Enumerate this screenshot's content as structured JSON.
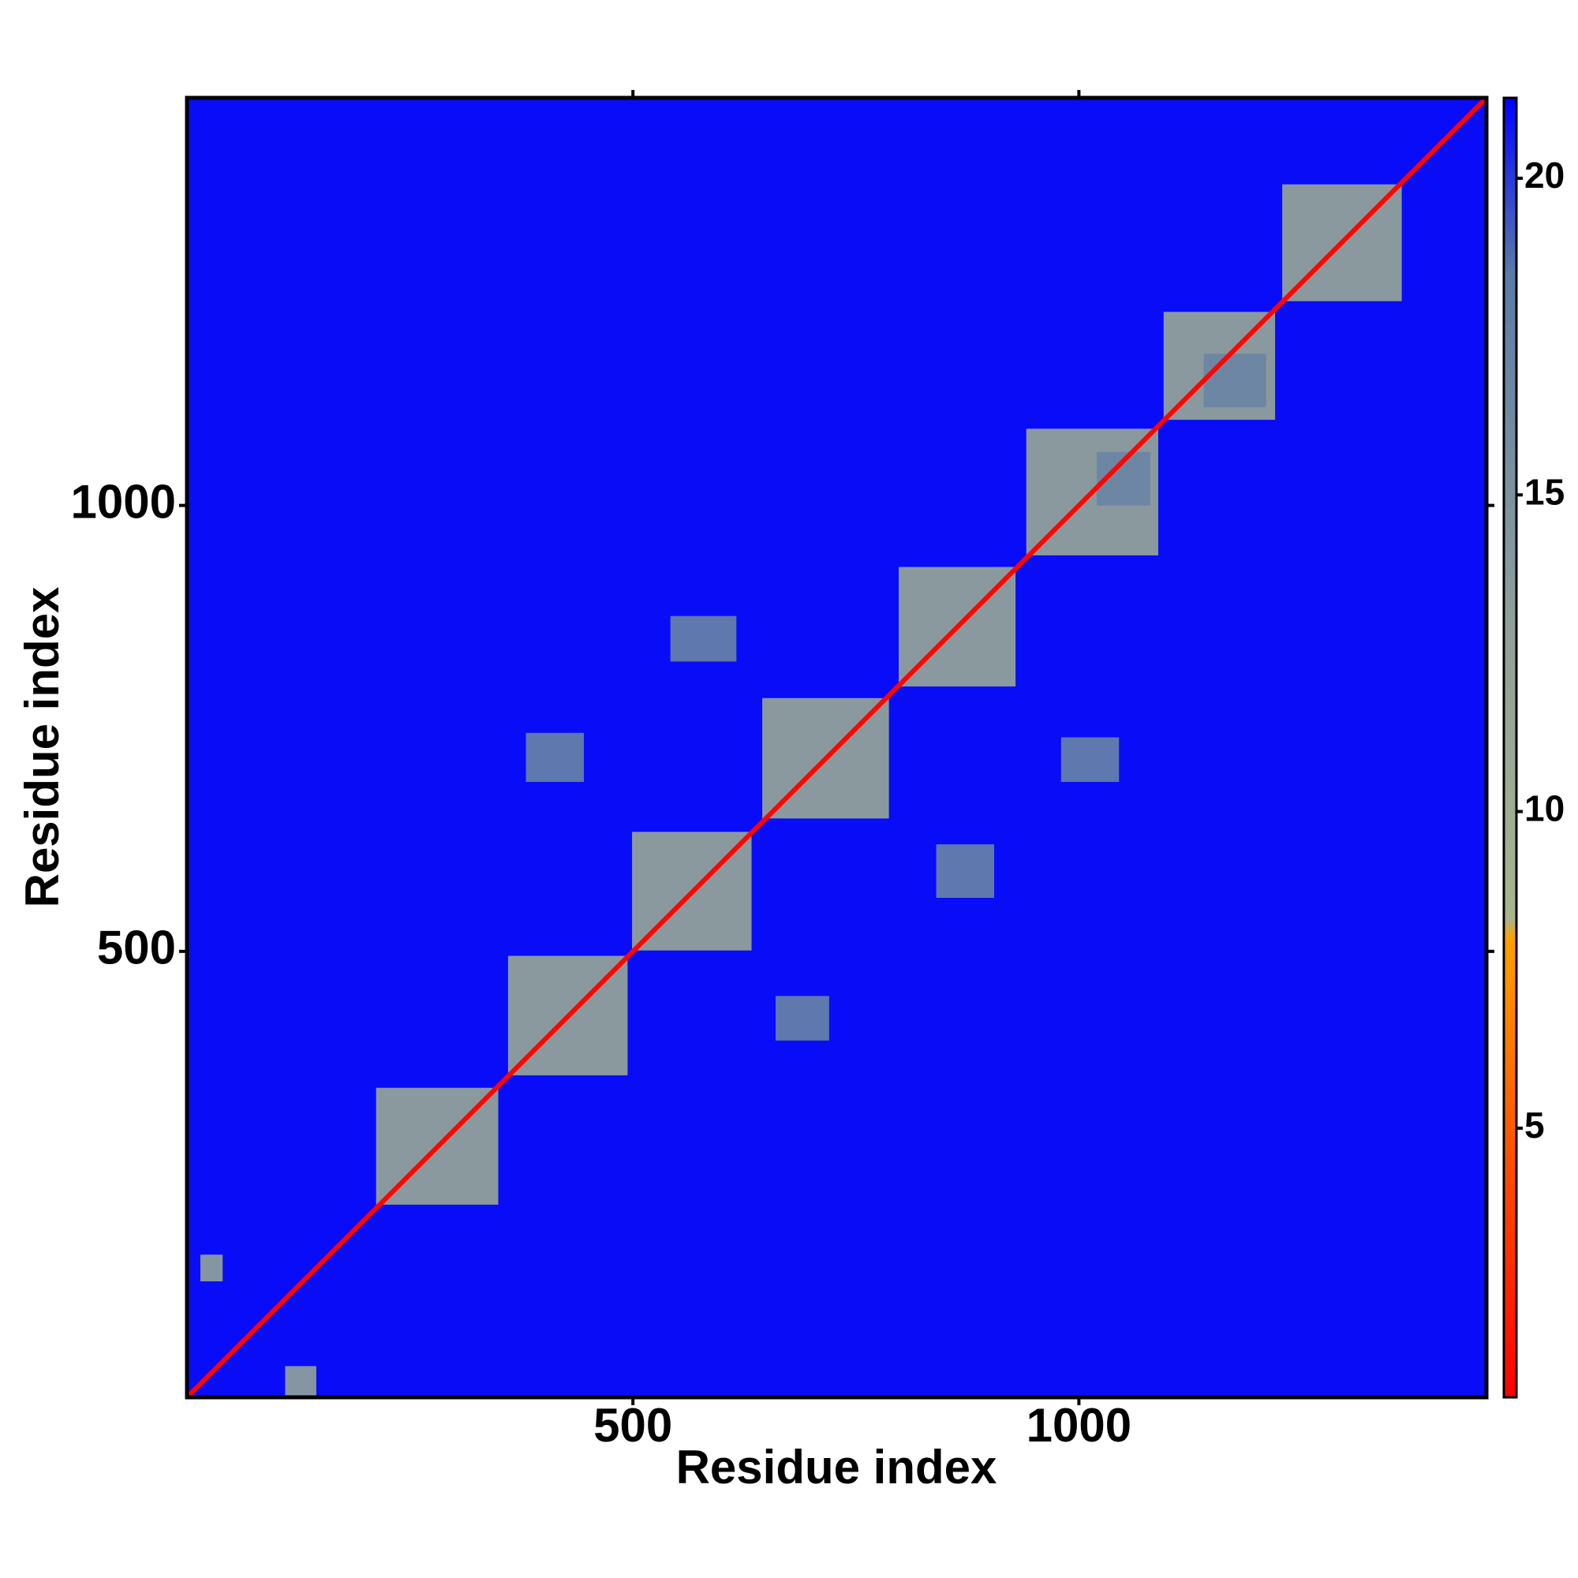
{
  "chart_data": {
    "type": "heatmap",
    "xlabel": "Residue index",
    "ylabel": "Residue index",
    "xlim": [
      0,
      1457
    ],
    "ylim": [
      0,
      1457
    ],
    "xticks": [
      500,
      1000
    ],
    "yticks": [
      500,
      1000
    ],
    "background_value": 21,
    "diagonal_value": 1,
    "regions": [
      {
        "x": [
          212,
          349
        ],
        "y": [
          216,
          347
        ],
        "value": 11
      },
      {
        "x": [
          360,
          494
        ],
        "y": [
          361,
          495
        ],
        "value": 11
      },
      {
        "x": [
          499,
          633
        ],
        "y": [
          501,
          634
        ],
        "value": 11
      },
      {
        "x": [
          645,
          787
        ],
        "y": [
          649,
          784
        ],
        "value": 11
      },
      {
        "x": [
          798,
          929
        ],
        "y": [
          797,
          931
        ],
        "value": 11
      },
      {
        "x": [
          941,
          1089
        ],
        "y": [
          944,
          1086
        ],
        "value": 11
      },
      {
        "x": [
          1095,
          1220
        ],
        "y": [
          1096,
          1217
        ],
        "value": 11
      },
      {
        "x": [
          1228,
          1362
        ],
        "y": [
          1229,
          1360
        ],
        "value": 11
      },
      {
        "x": [
          542,
          616
        ],
        "y": [
          825,
          876
        ],
        "value": 17
      },
      {
        "x": [
          380,
          445
        ],
        "y": [
          690,
          745
        ],
        "value": 17
      },
      {
        "x": [
          980,
          1045
        ],
        "y": [
          690,
          740
        ],
        "value": 17
      },
      {
        "x": [
          840,
          905
        ],
        "y": [
          560,
          620
        ],
        "value": 17
      },
      {
        "x": [
          660,
          720
        ],
        "y": [
          400,
          450
        ],
        "value": 17
      },
      {
        "x": [
          1020,
          1080
        ],
        "y": [
          1000,
          1060
        ],
        "value": 17
      },
      {
        "x": [
          1140,
          1210
        ],
        "y": [
          1110,
          1170
        ],
        "value": 17
      },
      {
        "x": [
          110,
          145
        ],
        "y": [
          0,
          35
        ],
        "value": 12
      },
      {
        "x": [
          15,
          40
        ],
        "y": [
          130,
          160
        ],
        "value": 12
      }
    ],
    "colorbar": {
      "zlim": [
        0.75,
        21.27
      ],
      "ticks": [
        5,
        10,
        15,
        20
      ],
      "color_stops": [
        {
          "value": 0.75,
          "color": "#ff0000"
        },
        {
          "value": 5,
          "color": "#ff5a00"
        },
        {
          "value": 8,
          "color": "#ffa000"
        },
        {
          "value": 8.3,
          "color": "#a8b48c"
        },
        {
          "value": 13,
          "color": "#8ea09a"
        },
        {
          "value": 18.5,
          "color": "#5b7aa8"
        },
        {
          "value": 20,
          "color": "#2a3ad8"
        },
        {
          "value": 21.27,
          "color": "#0000ff"
        }
      ]
    }
  }
}
